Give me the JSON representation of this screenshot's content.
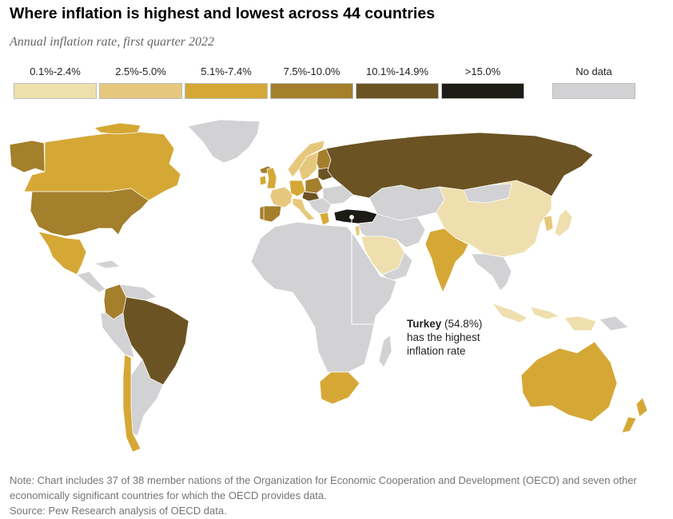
{
  "title": "Where inflation is highest and lowest across 44 countries",
  "subtitle": "Annual inflation rate, first quarter 2022",
  "legend": [
    {
      "label": "0.1%-2.4%",
      "color": "#efdfae"
    },
    {
      "label": "2.5%-5.0%",
      "color": "#e6c87d"
    },
    {
      "label": "5.1%-7.4%",
      "color": "#d5a836"
    },
    {
      "label": "7.5%-10.0%",
      "color": "#a47f2c"
    },
    {
      "label": "10.1%-14.9%",
      "color": "#6b5323"
    },
    {
      "label": ">15.0%",
      "color": "#1c1b16"
    },
    {
      "label": "No data",
      "color": "#d2d2d4"
    }
  ],
  "callout": {
    "country": "Turkey",
    "value": "(54.8%)",
    "line2": "has the highest",
    "line3": "inflation rate"
  },
  "note": "Note: Chart includes 37 of 38 member nations of the Organization for Economic Cooperation and Development (OECD) and seven other economically significant countries for which the OECD provides data.",
  "source": "Source: Pew Research analysis of OECD data."
}
